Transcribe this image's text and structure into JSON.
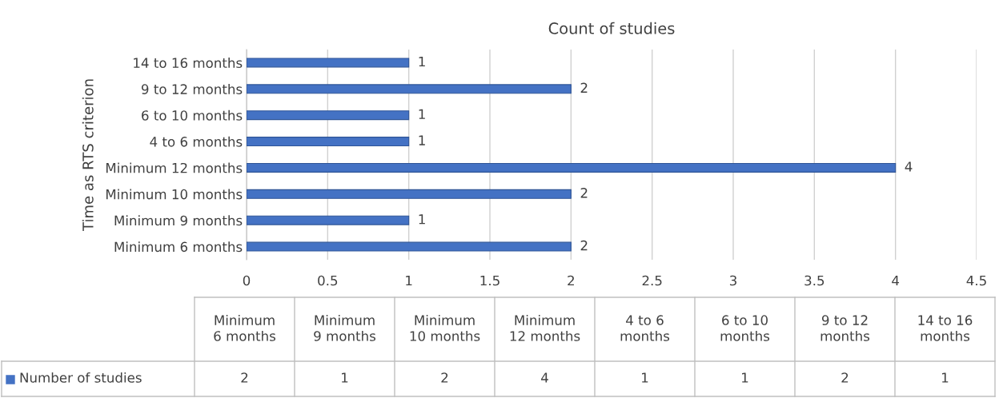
{
  "chart_data": [
    {
      "type": "bar",
      "orientation": "horizontal",
      "title": "Count of studies",
      "ylabel": "Time as RTS criterion",
      "categories": [
        "14 to 16 months",
        "9 to 12 months",
        "6 to 10 months",
        "4 to 6 months",
        "Minimum 12 months",
        "Minimum 10 months",
        "Minimum 9 months",
        "Minimum 6 months"
      ],
      "series": [
        {
          "color": "#4472c4",
          "values": [
            1,
            2,
            1,
            1,
            4,
            2,
            1,
            2
          ]
        }
      ],
      "xlim": [
        0,
        4.5
      ],
      "xticks": [
        0,
        0.5,
        1,
        1.5,
        2,
        2.5,
        3,
        3.5,
        4,
        4.5
      ],
      "grid": "x",
      "data_labels": true
    },
    {
      "type": "other",
      "categories": [
        "Minimum 6 months",
        "Minimum 9 months",
        "Minimum 10 months",
        "Minimum 12 months",
        "4 to 6 months",
        "6 to 10 months",
        "9 to 12 months",
        "14 to 16 months"
      ],
      "series": [
        {
          "name": "Number of studies",
          "color": "#4472c4",
          "values": [
            2,
            1,
            2,
            4,
            1,
            1,
            2,
            1
          ]
        }
      ],
      "data_labels": true
    }
  ]
}
